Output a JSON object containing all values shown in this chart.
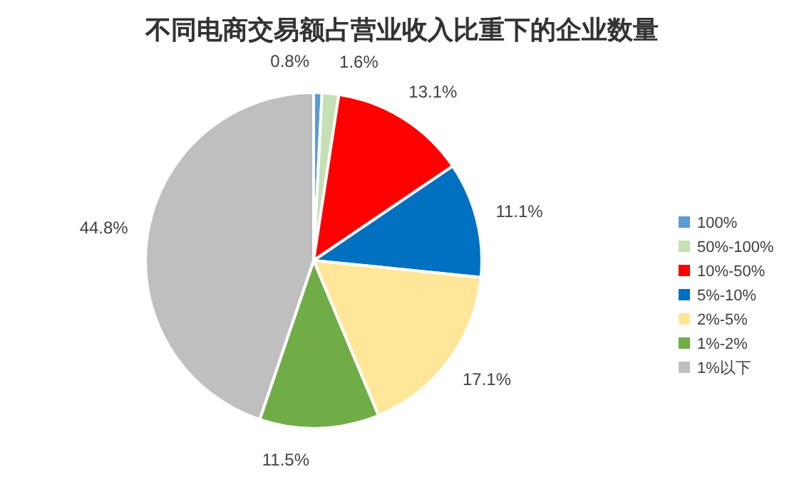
{
  "chart_data": {
    "type": "pie",
    "title": "不同电商交易额占营业收入比重下的企业数量",
    "categories": [
      "100%",
      "50%-100%",
      "10%-50%",
      "5%-10%",
      "2%-5%",
      "1%-2%",
      "1%以下"
    ],
    "values": [
      0.8,
      1.6,
      13.1,
      11.1,
      17.1,
      11.5,
      44.8
    ],
    "colors": [
      "#5b9bd5",
      "#c5e0b4",
      "#ff0000",
      "#0070c0",
      "#ffe699",
      "#70ad47",
      "#bfbfbf"
    ],
    "value_labels": [
      "0.8%",
      "1.6%",
      "13.1%",
      "11.1%",
      "17.1%",
      "11.5%",
      "44.8%"
    ],
    "legend": "right"
  }
}
